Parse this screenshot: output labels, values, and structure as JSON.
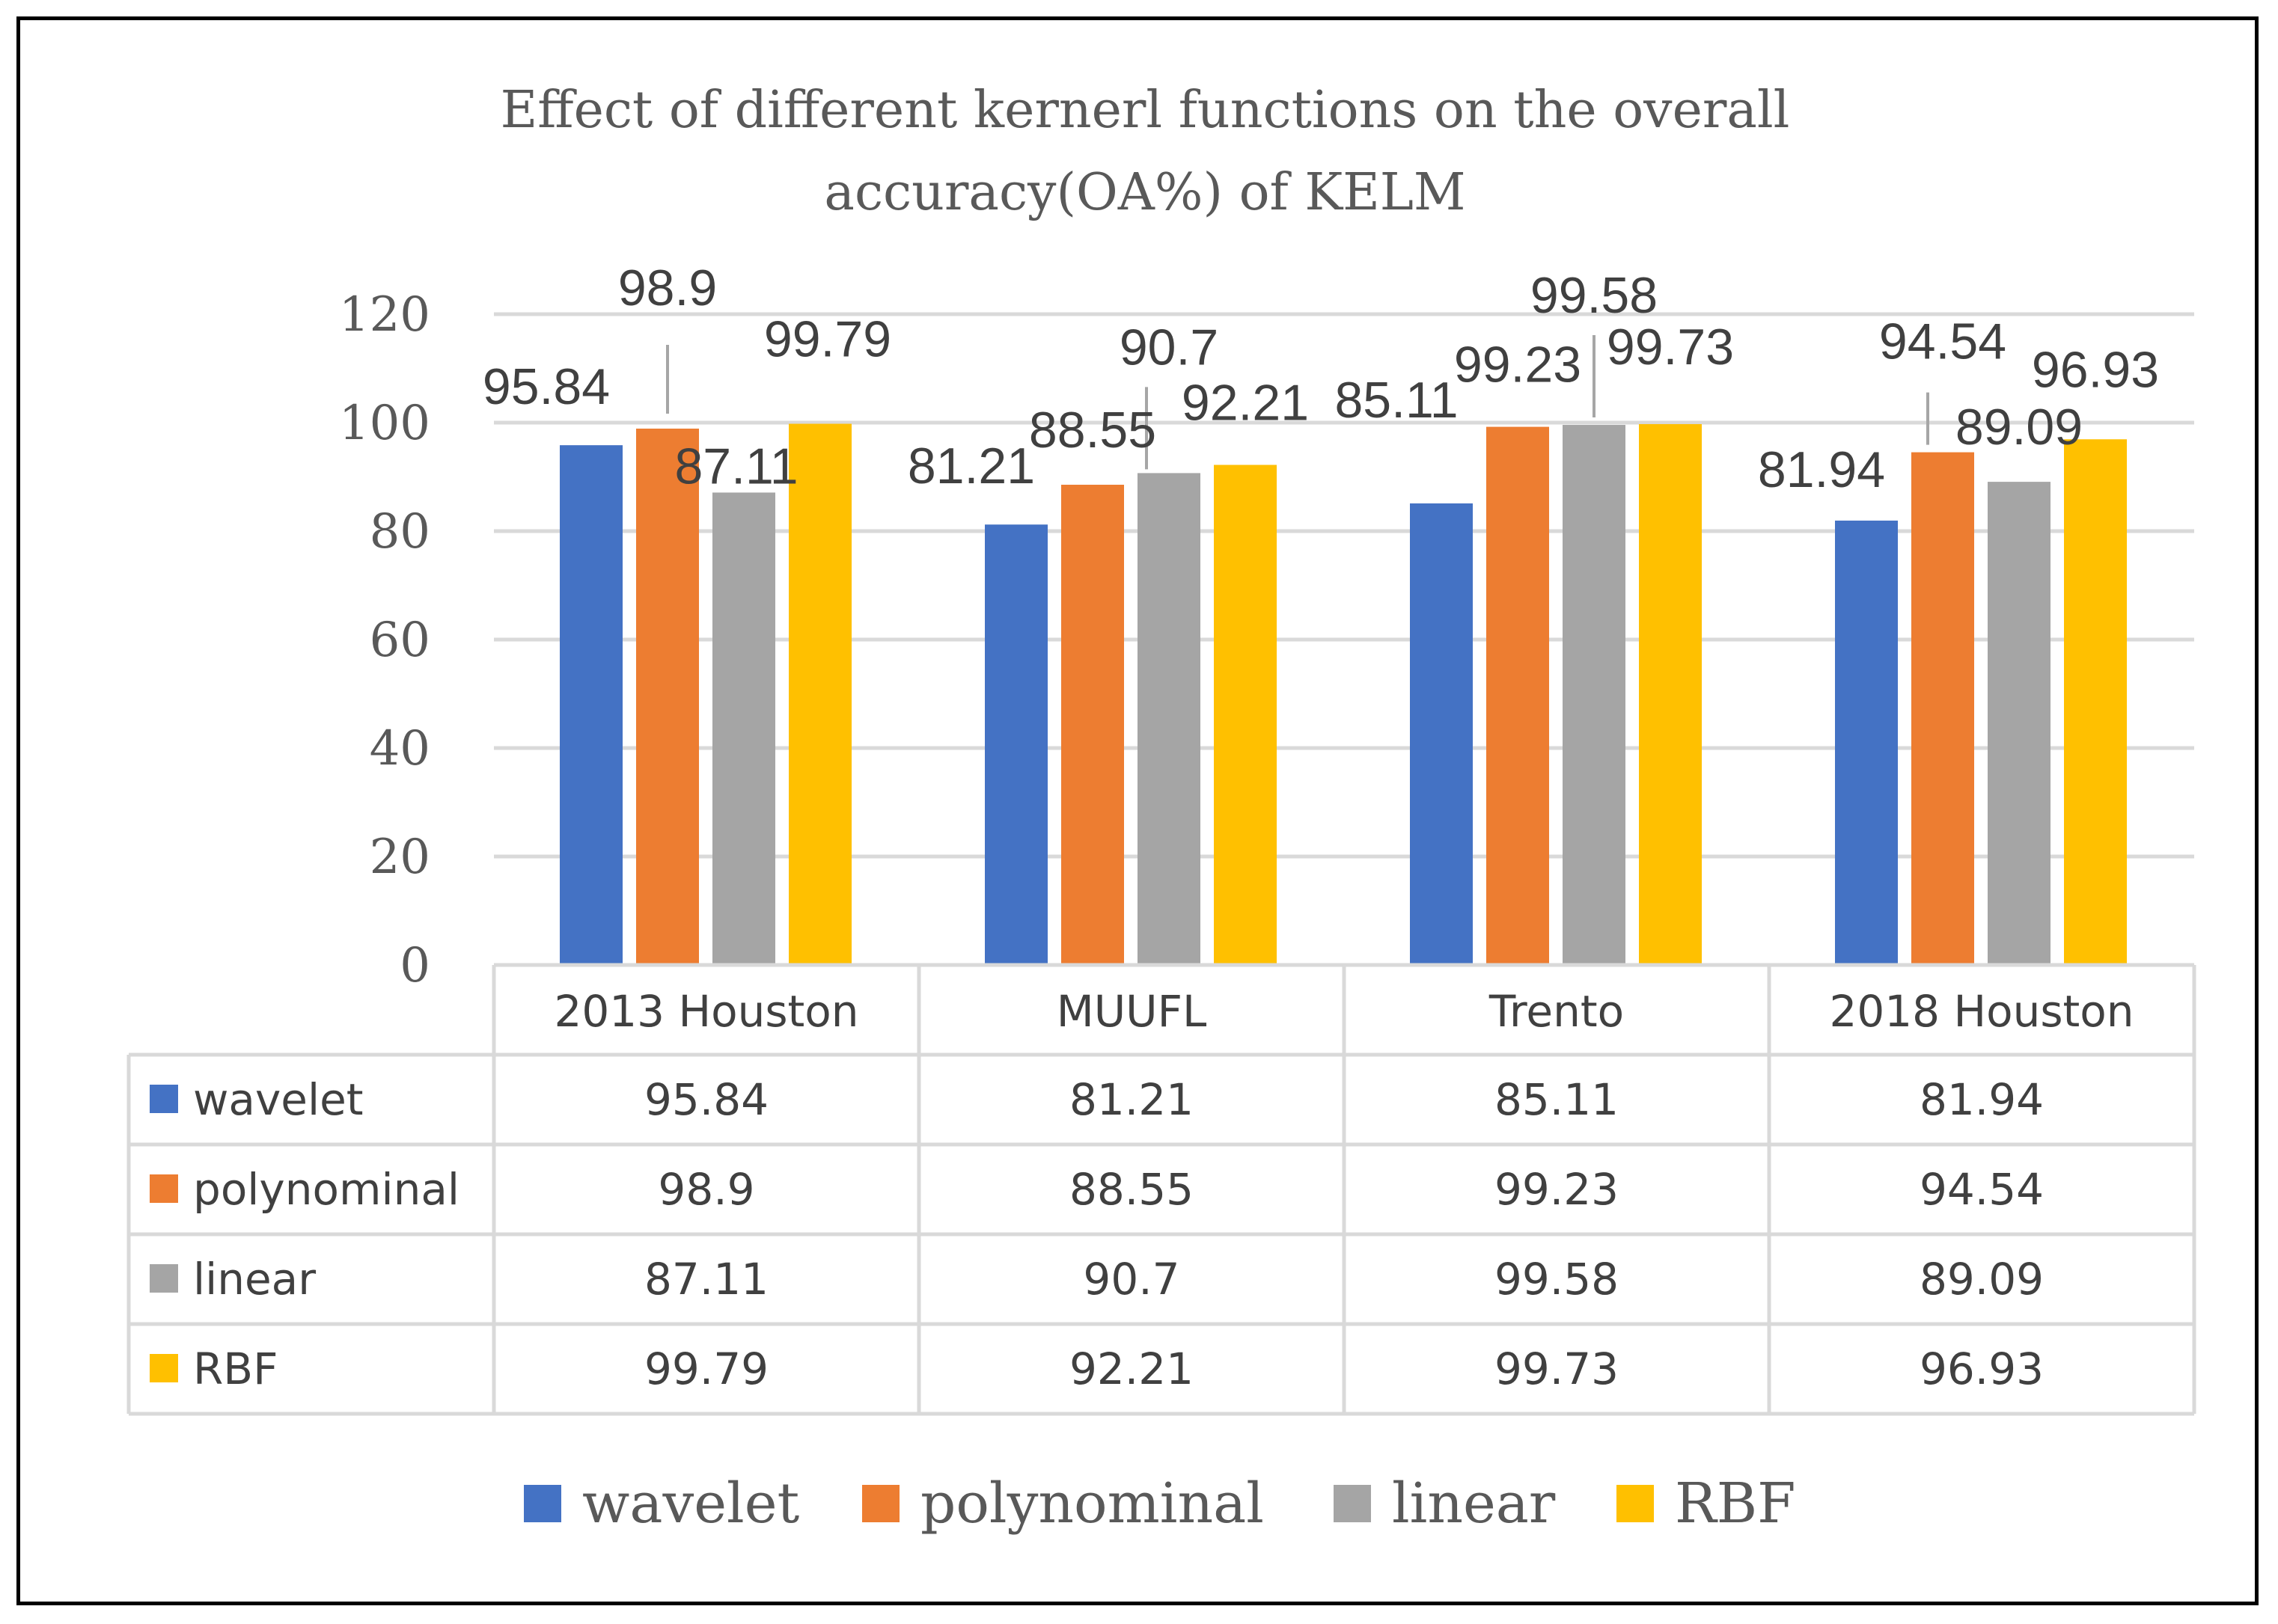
{
  "chart_data": {
    "type": "bar",
    "title_lines": [
      "Effect of different kernerl functions on the overall",
      "accuracy(OA%) of KELM"
    ],
    "categories": [
      "2013 Houston",
      "MUUFL",
      "Trento",
      "2018 Houston"
    ],
    "series": [
      {
        "name": "wavelet",
        "color": "#4472C4",
        "values": [
          95.84,
          81.21,
          85.11,
          81.94
        ],
        "labels": [
          "95.84",
          "81.21",
          "85.11",
          "81.94"
        ]
      },
      {
        "name": "polynominal",
        "color": "#ED7D31",
        "values": [
          98.9,
          88.55,
          99.23,
          94.54
        ],
        "labels": [
          "98.9",
          "88.55",
          "99.23",
          "94.54"
        ]
      },
      {
        "name": "linear",
        "color": "#A5A5A5",
        "values": [
          87.11,
          90.7,
          99.58,
          89.09
        ],
        "labels": [
          "87.11",
          "90.7",
          "99.58",
          "89.09"
        ]
      },
      {
        "name": "RBF",
        "color": "#FFC000",
        "values": [
          99.79,
          92.21,
          99.73,
          96.93
        ],
        "labels": [
          "99.79",
          "92.21",
          "99.73",
          "96.93"
        ]
      }
    ],
    "ylim": [
      0,
      120
    ],
    "yticks": [
      0,
      20,
      40,
      60,
      80,
      100,
      120
    ],
    "grid": true,
    "data_table": true,
    "legend_position": "bottom"
  }
}
